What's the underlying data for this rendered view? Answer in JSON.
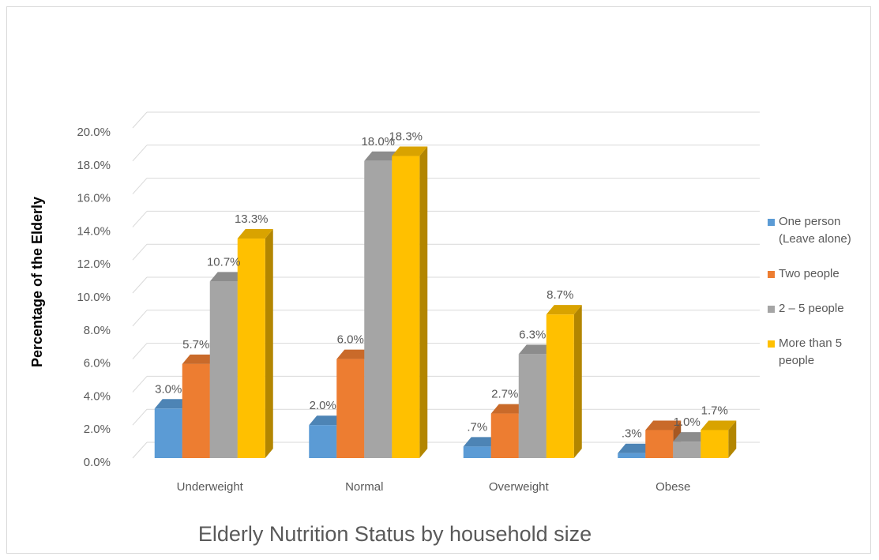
{
  "chart_data": {
    "type": "bar3d",
    "title": "Elderly Nutrition Status by household size",
    "y_label": "Percentage of the Elderly",
    "categories": [
      "Underweight",
      "Normal",
      "Overweight",
      "Obese"
    ],
    "series": [
      {
        "name": "One person (Leave alone)",
        "color": "#5b9bd5",
        "values": [
          3.0,
          2.0,
          0.7,
          0.3
        ],
        "value_labels": [
          "3.0%",
          "2.0%",
          ".7%",
          ".3%"
        ]
      },
      {
        "name": "Two people",
        "color": "#ed7d31",
        "values": [
          5.7,
          6.0,
          2.7,
          1.7
        ],
        "value_labels": [
          "5.7%",
          "6.0%",
          "2.7%",
          null
        ]
      },
      {
        "name": "2 – 5 people",
        "color": "#a5a5a5",
        "values": [
          10.7,
          18.0,
          6.3,
          1.0
        ],
        "value_labels": [
          "10.7%",
          "18.0%",
          "6.3%",
          "1.0%"
        ]
      },
      {
        "name": "More than 5 people",
        "color": "#ffc000",
        "values": [
          13.3,
          18.3,
          8.7,
          1.7
        ],
        "value_labels": [
          "13.3%",
          "18.3%",
          "8.7%",
          "1.7%"
        ]
      }
    ],
    "ylim": [
      0,
      20
    ],
    "yticks": [
      {
        "value": 0,
        "label": "0.0%"
      },
      {
        "value": 2,
        "label": "2.0%"
      },
      {
        "value": 4,
        "label": "4.0%"
      },
      {
        "value": 6,
        "label": "6.0%"
      },
      {
        "value": 8,
        "label": "8.0%"
      },
      {
        "value": 10,
        "label": "10.0%"
      },
      {
        "value": 12,
        "label": "12.0%"
      },
      {
        "value": 14,
        "label": "14.0%"
      },
      {
        "value": 16,
        "label": "16.0%"
      },
      {
        "value": 18,
        "label": "18.0%"
      },
      {
        "value": 20,
        "label": "20.0%"
      }
    ],
    "grid": true,
    "legend": "right"
  }
}
